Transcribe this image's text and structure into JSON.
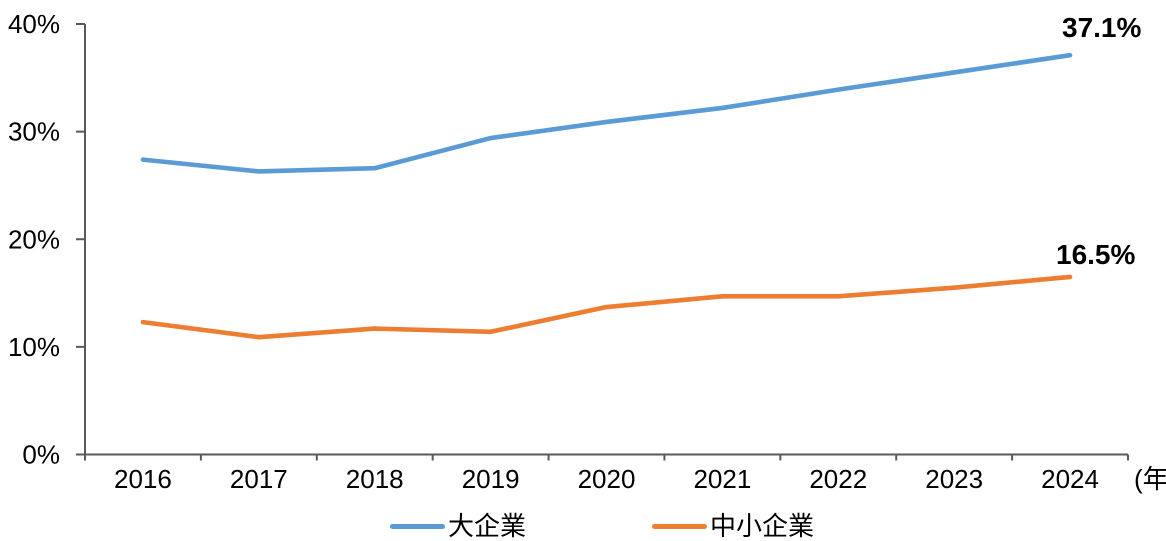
{
  "chart_data": {
    "type": "line",
    "title": "",
    "categories": [
      "2016",
      "2017",
      "2018",
      "2019",
      "2020",
      "2021",
      "2022",
      "2023",
      "2024"
    ],
    "x_axis_unit": "(年)",
    "ylim": [
      0,
      40
    ],
    "ytick_values": [
      0,
      10,
      20,
      30,
      40
    ],
    "ytick_labels": [
      "0%",
      "10%",
      "20%",
      "30%",
      "40%"
    ],
    "grid": false,
    "legend_position": "bottom",
    "axis_color": "#595959",
    "label_color": "#000000",
    "series": [
      {
        "name": "大企業",
        "color": "#5B9BD5",
        "values": [
          27.4,
          26.3,
          26.6,
          29.4,
          30.9,
          32.2,
          33.9,
          35.5,
          37.1
        ],
        "end_label": "37.1%"
      },
      {
        "name": "中小企業",
        "color": "#ED7D31",
        "values": [
          12.3,
          10.9,
          11.7,
          11.4,
          13.7,
          14.7,
          14.7,
          15.5,
          16.5
        ],
        "end_label": "16.5%"
      }
    ]
  }
}
